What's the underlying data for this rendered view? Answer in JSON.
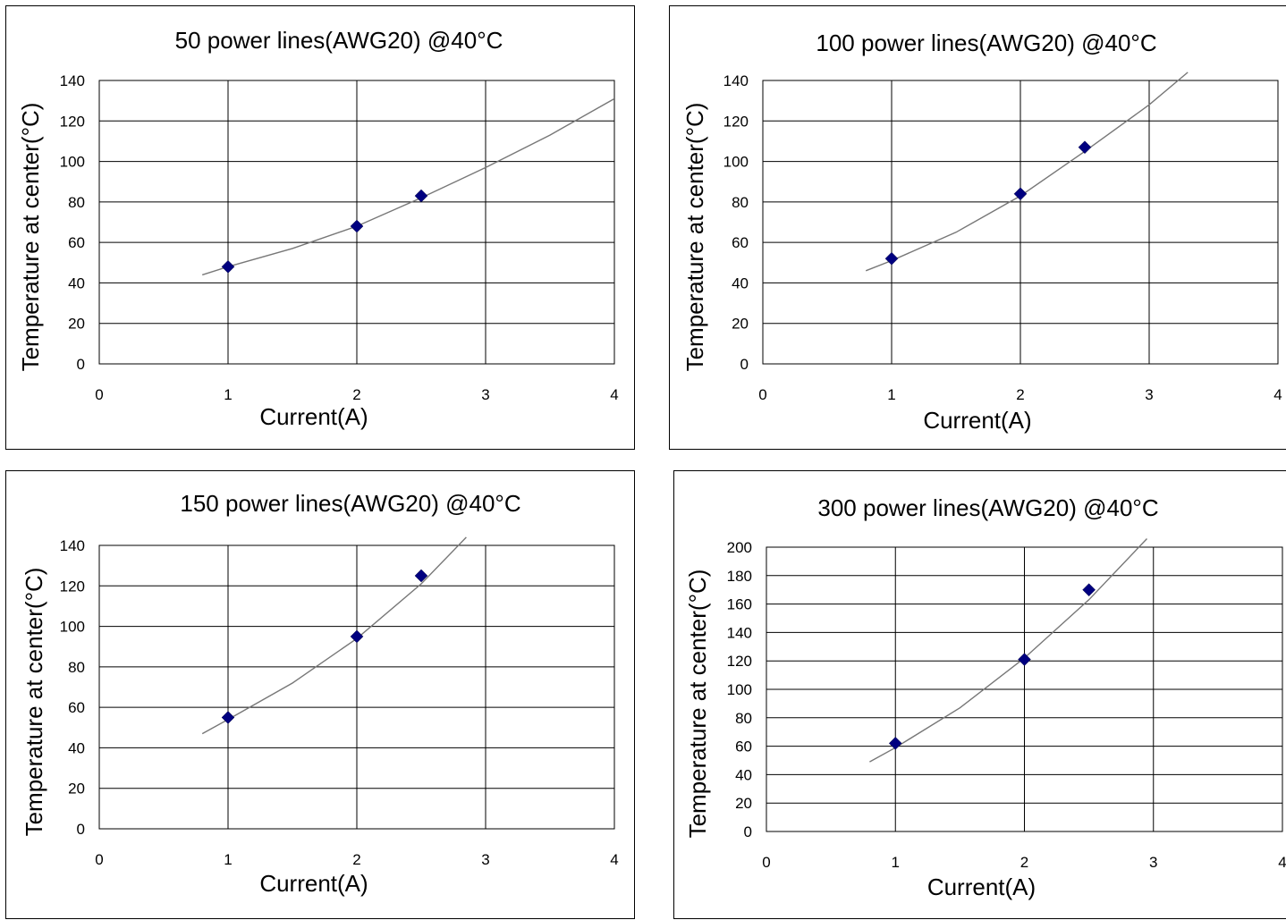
{
  "chart_data": [
    {
      "type": "scatter",
      "title": "50 power lines(AWG20) @40°C",
      "xlabel": "Current(A)",
      "ylabel": "Temperature at center(°C)",
      "xlim": [
        0,
        4
      ],
      "ylim": [
        0,
        140
      ],
      "xticks": [
        "0",
        "1",
        "2",
        "3",
        "4"
      ],
      "yticks": [
        "0",
        "20",
        "40",
        "60",
        "80",
        "100",
        "120",
        "140"
      ],
      "grid": true,
      "marker_color": "#000080",
      "points": [
        {
          "x": 1,
          "y": 48
        },
        {
          "x": 2,
          "y": 68
        },
        {
          "x": 2.5,
          "y": 83
        }
      ],
      "trendline": [
        {
          "x": 0.8,
          "y": 44
        },
        {
          "x": 1.0,
          "y": 48
        },
        {
          "x": 1.5,
          "y": 57
        },
        {
          "x": 2.0,
          "y": 68
        },
        {
          "x": 2.5,
          "y": 82
        },
        {
          "x": 3.0,
          "y": 97
        },
        {
          "x": 3.5,
          "y": 113
        },
        {
          "x": 4.0,
          "y": 131
        }
      ]
    },
    {
      "type": "scatter",
      "title": "100 power lines(AWG20) @40°C",
      "xlabel": "Current(A)",
      "ylabel": "Temperature at center(°C)",
      "xlim": [
        0,
        4
      ],
      "ylim": [
        0,
        140
      ],
      "xticks": [
        "0",
        "1",
        "2",
        "3",
        "4"
      ],
      "yticks": [
        "0",
        "20",
        "40",
        "60",
        "80",
        "100",
        "120",
        "140"
      ],
      "grid": true,
      "marker_color": "#000080",
      "points": [
        {
          "x": 1,
          "y": 52
        },
        {
          "x": 2,
          "y": 84
        },
        {
          "x": 2.5,
          "y": 107
        }
      ],
      "trendline": [
        {
          "x": 0.8,
          "y": 46
        },
        {
          "x": 1.0,
          "y": 51
        },
        {
          "x": 1.5,
          "y": 65
        },
        {
          "x": 2.0,
          "y": 83
        },
        {
          "x": 2.5,
          "y": 105
        },
        {
          "x": 3.0,
          "y": 128
        },
        {
          "x": 3.3,
          "y": 144
        }
      ]
    },
    {
      "type": "scatter",
      "title": "150 power lines(AWG20) @40°C",
      "xlabel": "Current(A)",
      "ylabel": "Temperature at center(°C)",
      "xlim": [
        0,
        4
      ],
      "ylim": [
        0,
        140
      ],
      "xticks": [
        "0",
        "1",
        "2",
        "3",
        "4"
      ],
      "yticks": [
        "0",
        "20",
        "40",
        "60",
        "80",
        "100",
        "120",
        "140"
      ],
      "grid": true,
      "marker_color": "#000080",
      "points": [
        {
          "x": 1,
          "y": 55
        },
        {
          "x": 2,
          "y": 95
        },
        {
          "x": 2.5,
          "y": 125
        }
      ],
      "trendline": [
        {
          "x": 0.8,
          "y": 47
        },
        {
          "x": 1.0,
          "y": 54
        },
        {
          "x": 1.5,
          "y": 72
        },
        {
          "x": 2.0,
          "y": 94
        },
        {
          "x": 2.5,
          "y": 121
        },
        {
          "x": 2.85,
          "y": 144
        }
      ]
    },
    {
      "type": "scatter",
      "title": "300 power lines(AWG20) @40°C",
      "xlabel": "Current(A)",
      "ylabel": "Temperature at center(°C)",
      "xlim": [
        0,
        4
      ],
      "ylim": [
        0,
        200
      ],
      "xticks": [
        "0",
        "1",
        "2",
        "3",
        "4"
      ],
      "yticks": [
        "0",
        "20",
        "40",
        "60",
        "80",
        "100",
        "120",
        "140",
        "160",
        "180",
        "200"
      ],
      "grid": true,
      "marker_color": "#000080",
      "points": [
        {
          "x": 1,
          "y": 62
        },
        {
          "x": 2,
          "y": 121
        },
        {
          "x": 2.5,
          "y": 170
        }
      ],
      "trendline": [
        {
          "x": 0.8,
          "y": 49
        },
        {
          "x": 1.0,
          "y": 59
        },
        {
          "x": 1.5,
          "y": 87
        },
        {
          "x": 2.0,
          "y": 122
        },
        {
          "x": 2.5,
          "y": 163
        },
        {
          "x": 2.95,
          "y": 206
        }
      ]
    }
  ]
}
